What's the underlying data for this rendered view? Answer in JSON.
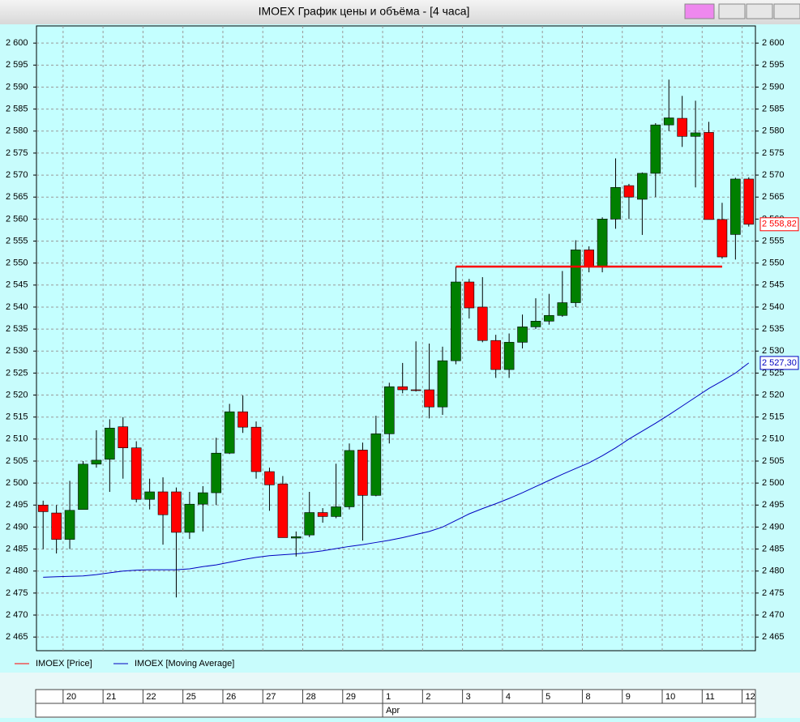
{
  "window": {
    "title": "IMOEX График цены и объёма - [4 часа]"
  },
  "chart_data": {
    "type": "candlestick",
    "ylim": [
      2461.9,
      2603.9
    ],
    "yticks": [
      {
        "value": 2465,
        "label": "2 465"
      },
      {
        "value": 2470,
        "label": "2 470"
      },
      {
        "value": 2475,
        "label": "2 475"
      },
      {
        "value": 2480,
        "label": "2 480"
      },
      {
        "value": 2485,
        "label": "2 485"
      },
      {
        "value": 2490,
        "label": "2 490"
      },
      {
        "value": 2495,
        "label": "2 495"
      },
      {
        "value": 2500,
        "label": "2 500"
      },
      {
        "value": 2505,
        "label": "2 505"
      },
      {
        "value": 2510,
        "label": "2 510"
      },
      {
        "value": 2515,
        "label": "2 515"
      },
      {
        "value": 2520,
        "label": "2 520"
      },
      {
        "value": 2525,
        "label": "2 525"
      },
      {
        "value": 2530,
        "label": "2 530"
      },
      {
        "value": 2535,
        "label": "2 535"
      },
      {
        "value": 2540,
        "label": "2 540"
      },
      {
        "value": 2545,
        "label": "2 545"
      },
      {
        "value": 2550,
        "label": "2 550"
      },
      {
        "value": 2555,
        "label": "2 555"
      },
      {
        "value": 2560,
        "label": "2 560"
      },
      {
        "value": 2565,
        "label": "2 565"
      },
      {
        "value": 2570,
        "label": "2 570"
      },
      {
        "value": 2575,
        "label": "2 575"
      },
      {
        "value": 2580,
        "label": "2 580"
      },
      {
        "value": 2585,
        "label": "2 585"
      },
      {
        "value": 2590,
        "label": "2 590"
      },
      {
        "value": 2595,
        "label": "2 595"
      },
      {
        "value": 2600,
        "label": "2 600"
      }
    ],
    "grid": true,
    "days": [
      "20",
      "21",
      "22",
      "25",
      "26",
      "27",
      "28",
      "29",
      "1",
      "2",
      "3",
      "4",
      "5",
      "8",
      "9",
      "10",
      "11",
      "12"
    ],
    "month": {
      "label": "Apr",
      "day": 8
    },
    "up_color": "#008000",
    "down_color": "#ff0000",
    "price": {
      "name": "IMOEX [Price]",
      "color": "#ff0000",
      "open": [
        2495,
        2493.2,
        2487.2,
        2494,
        2504.3,
        2505.4,
        2512.8,
        2508,
        2496.3,
        2498,
        2498,
        2488.8,
        2495.2,
        2497.8,
        2506.8,
        2516.2,
        2512.7,
        2502.6,
        2499.8,
        2487.5,
        2488.2,
        2493.3,
        2492.4,
        2494.6,
        2507.5,
        2497.2,
        2511.2,
        2521.9,
        2521.2,
        2521.2,
        2517.3,
        2527.8,
        2545.7,
        2540,
        2532.4,
        2525.8,
        2532,
        2535.5,
        2536.8,
        2538.1,
        2541,
        2553,
        2549.2,
        2560,
        2567.6,
        2564.5,
        2570.4,
        2581.4,
        2582.9,
        2578.8,
        2579.7,
        2559.9,
        2556.5,
        2569.1
      ],
      "high": [
        2496,
        2495,
        2500.5,
        2505,
        2512,
        2514.5,
        2515,
        2509.5,
        2501,
        2501.3,
        2499,
        2498,
        2499.3,
        2510.3,
        2518,
        2519.9,
        2514,
        2503.5,
        2501.6,
        2489,
        2498,
        2494.3,
        2504.4,
        2509,
        2509.2,
        2515.3,
        2522.8,
        2527.3,
        2532.2,
        2531.7,
        2531,
        2549.2,
        2546.4,
        2546.8,
        2533.7,
        2534,
        2538.3,
        2542,
        2543,
        2548.2,
        2555.2,
        2553.8,
        2560.4,
        2573.8,
        2568,
        2570.6,
        2581.8,
        2591.7,
        2588,
        2586.9,
        2582.1,
        2563.7,
        2569.4,
        2569.5
      ],
      "low": [
        2485,
        2484,
        2485,
        2494,
        2503.5,
        2498,
        2501,
        2495.6,
        2494,
        2486,
        2474,
        2487.3,
        2489,
        2495,
        2506.6,
        2511.4,
        2501,
        2493.7,
        2487.6,
        2483.3,
        2487.7,
        2491,
        2492,
        2494,
        2486.9,
        2497,
        2509,
        2520.4,
        2520.8,
        2514.7,
        2515.5,
        2527,
        2537.4,
        2532,
        2523.9,
        2523.9,
        2530.6,
        2535,
        2536,
        2537.8,
        2540,
        2547.9,
        2547.9,
        2557.8,
        2560,
        2556.4,
        2565,
        2580,
        2576.4,
        2567.2,
        2559.9,
        2551,
        2550.8,
        2558.3
      ],
      "close": [
        2493.5,
        2487.2,
        2493.8,
        2504.3,
        2505.2,
        2512.5,
        2508,
        2496.3,
        2498,
        2492.8,
        2488.8,
        2495.2,
        2497.8,
        2506.8,
        2516.2,
        2512.7,
        2502.6,
        2499.6,
        2487.6,
        2487.8,
        2493.3,
        2492.4,
        2494.6,
        2507.4,
        2497.2,
        2511.2,
        2521.9,
        2521.2,
        2521.1,
        2517.3,
        2527.8,
        2545.7,
        2539.8,
        2532.4,
        2525.8,
        2532,
        2535.5,
        2536.8,
        2538.1,
        2541,
        2553,
        2549.2,
        2560,
        2567.2,
        2565,
        2570.4,
        2581.4,
        2583,
        2578.8,
        2579.6,
        2559.9,
        2551.4,
        2569.1,
        2558.82
      ],
      "last": {
        "value": 2558.82,
        "label": "2 558,82"
      }
    },
    "ma": {
      "name": "IMOEX [Moving Average]",
      "color": "#0000c0",
      "values": [
        2478.6,
        2478.7,
        2478.8,
        2478.9,
        2479.2,
        2479.6,
        2480,
        2480.2,
        2480.3,
        2480.3,
        2480.3,
        2480.5,
        2481,
        2481.4,
        2482,
        2482.6,
        2483.1,
        2483.5,
        2483.7,
        2483.9,
        2484.2,
        2484.6,
        2485.1,
        2485.6,
        2486,
        2486.5,
        2487,
        2487.6,
        2488.3,
        2489,
        2490,
        2491.5,
        2493,
        2494.2,
        2495.3,
        2496.5,
        2497.8,
        2499.2,
        2500.6,
        2502,
        2503.3,
        2504.6,
        2506.2,
        2508,
        2510,
        2511.8,
        2513.6,
        2515.5,
        2517.5,
        2519.5,
        2521.5,
        2523.2,
        2525,
        2527.3
      ],
      "last": {
        "value": 2527.3,
        "label": "2 527,30"
      }
    },
    "level": {
      "value": 2549.2,
      "from": 31,
      "to": 51,
      "color": "#ff0000"
    }
  }
}
